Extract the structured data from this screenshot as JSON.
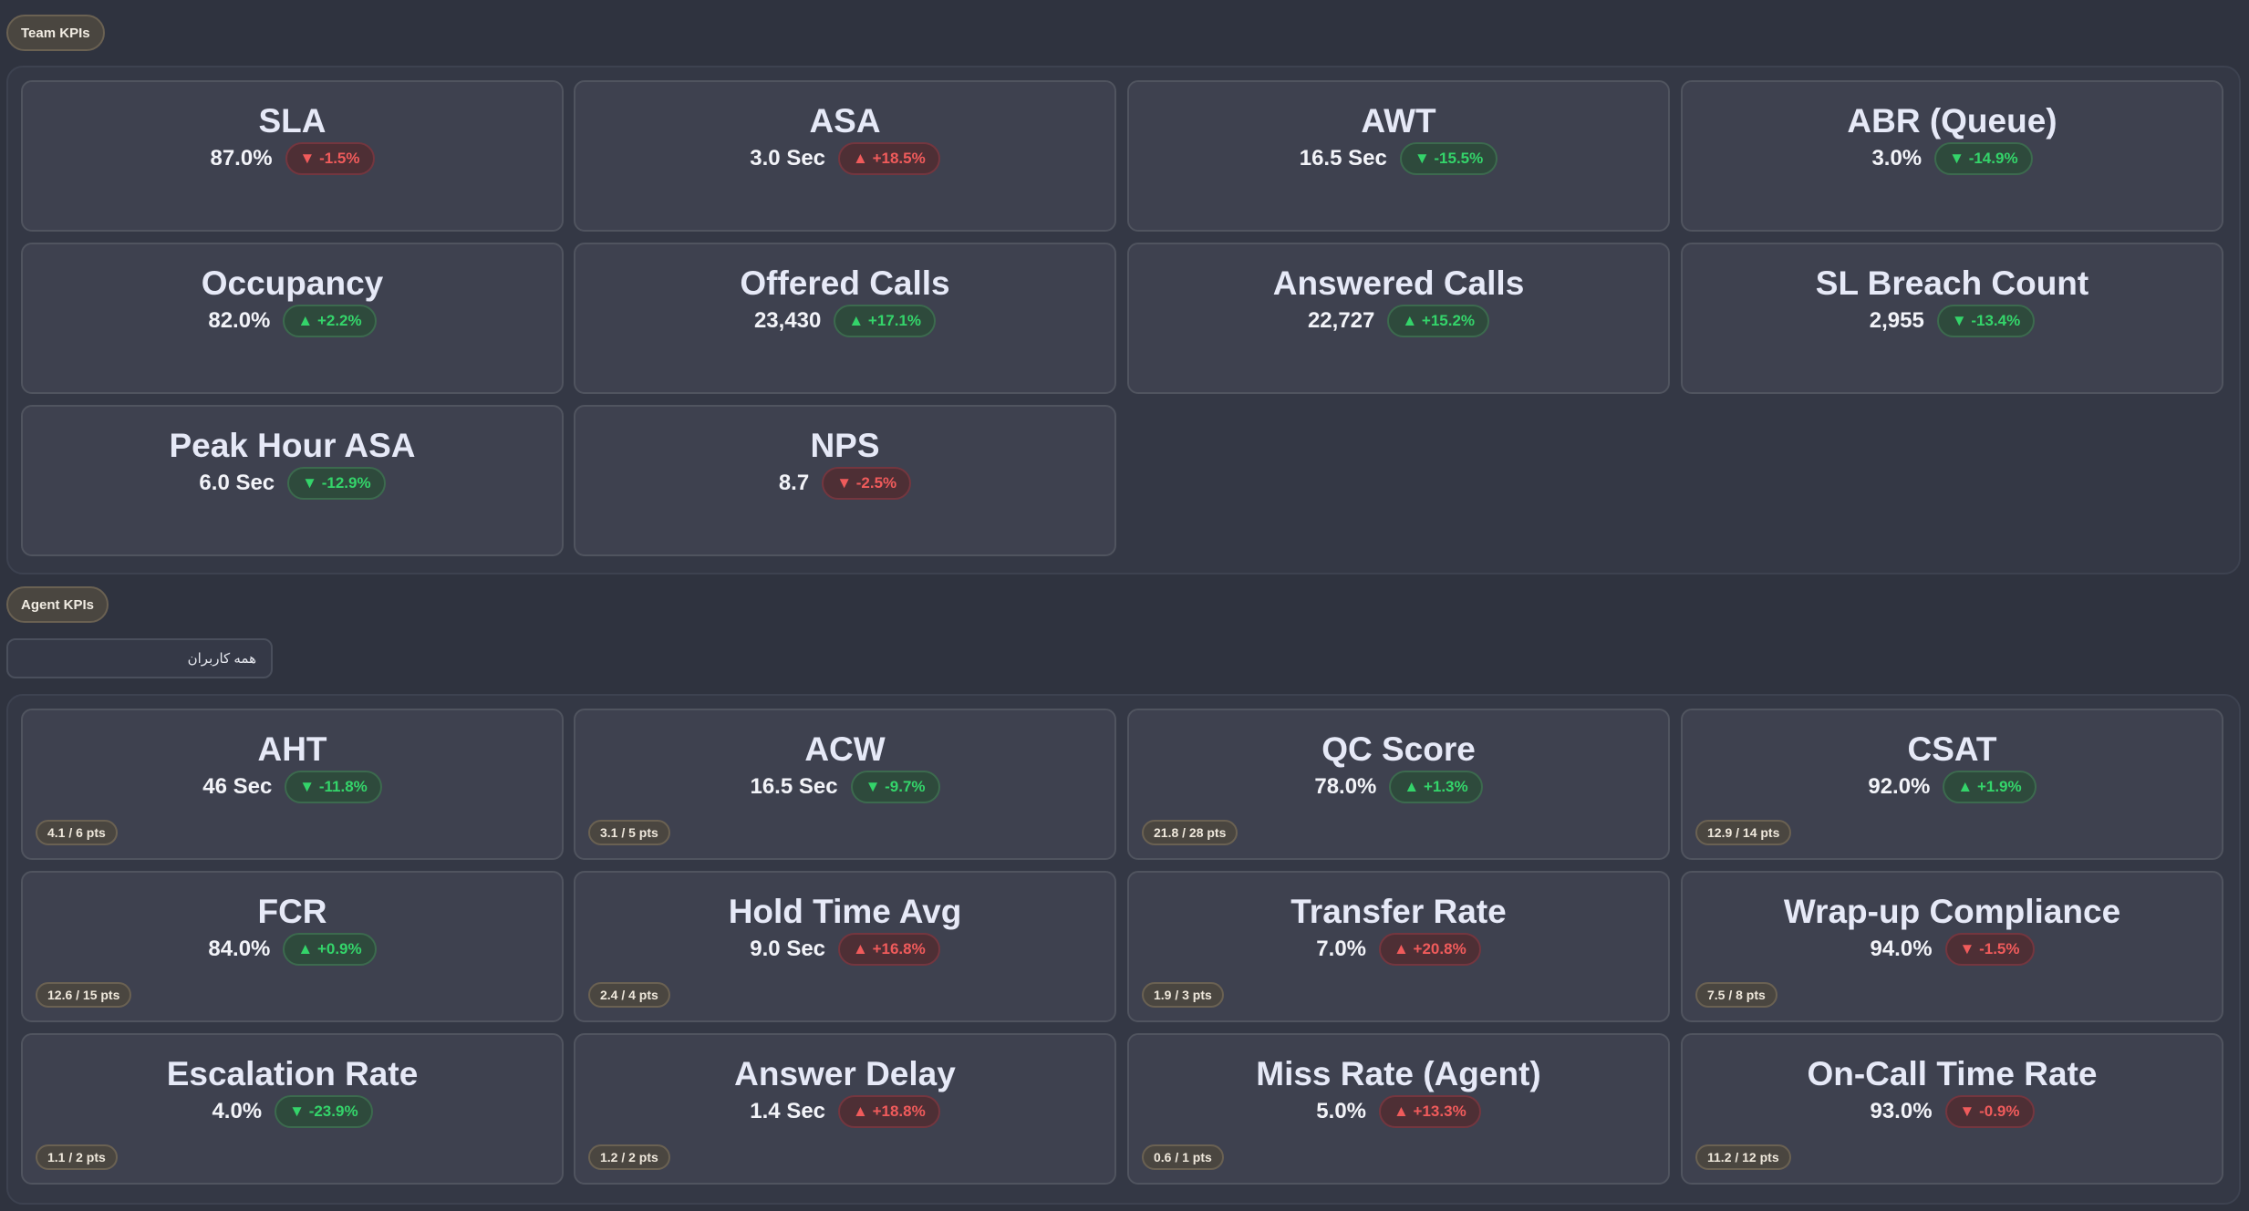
{
  "team_section": {
    "tag": "Team KPIs",
    "cards": [
      {
        "title": "SLA",
        "value": "87.0%",
        "delta": "▼ -1.5%",
        "trend": "neg"
      },
      {
        "title": "ASA",
        "value": "3.0 Sec",
        "delta": "▲ +18.5%",
        "trend": "neg"
      },
      {
        "title": "AWT",
        "value": "16.5 Sec",
        "delta": "▼ -15.5%",
        "trend": "pos"
      },
      {
        "title": "ABR (Queue)",
        "value": "3.0%",
        "delta": "▼ -14.9%",
        "trend": "pos"
      },
      {
        "title": "Occupancy",
        "value": "82.0%",
        "delta": "▲ +2.2%",
        "trend": "pos"
      },
      {
        "title": "Offered Calls",
        "value": "23,430",
        "delta": "▲ +17.1%",
        "trend": "pos"
      },
      {
        "title": "Answered Calls",
        "value": "22,727",
        "delta": "▲ +15.2%",
        "trend": "pos"
      },
      {
        "title": "SL Breach Count",
        "value": "2,955",
        "delta": "▼ -13.4%",
        "trend": "pos"
      },
      {
        "title": "Peak Hour ASA",
        "value": "6.0 Sec",
        "delta": "▼ -12.9%",
        "trend": "pos"
      },
      {
        "title": "NPS",
        "value": "8.7",
        "delta": "▼ -2.5%",
        "trend": "neg"
      }
    ]
  },
  "agent_section": {
    "tag": "Agent KPIs",
    "user_filter": "همه کاربران",
    "cards": [
      {
        "title": "AHT",
        "value": "46 Sec",
        "delta": "▼ -11.8%",
        "trend": "pos",
        "pts": "4.1 / 6 pts"
      },
      {
        "title": "ACW",
        "value": "16.5 Sec",
        "delta": "▼ -9.7%",
        "trend": "pos",
        "pts": "3.1 / 5 pts"
      },
      {
        "title": "QC Score",
        "value": "78.0%",
        "delta": "▲ +1.3%",
        "trend": "pos",
        "pts": "21.8 / 28 pts"
      },
      {
        "title": "CSAT",
        "value": "92.0%",
        "delta": "▲ +1.9%",
        "trend": "pos",
        "pts": "12.9 / 14 pts"
      },
      {
        "title": "FCR",
        "value": "84.0%",
        "delta": "▲ +0.9%",
        "trend": "pos",
        "pts": "12.6 / 15 pts"
      },
      {
        "title": "Hold Time Avg",
        "value": "9.0 Sec",
        "delta": "▲ +16.8%",
        "trend": "neg",
        "pts": "2.4 / 4 pts"
      },
      {
        "title": "Transfer Rate",
        "value": "7.0%",
        "delta": "▲ +20.8%",
        "trend": "neg",
        "pts": "1.9 / 3 pts"
      },
      {
        "title": "Wrap-up Compliance",
        "value": "94.0%",
        "delta": "▼ -1.5%",
        "trend": "neg",
        "pts": "7.5 / 8 pts"
      },
      {
        "title": "Escalation Rate",
        "value": "4.0%",
        "delta": "▼ -23.9%",
        "trend": "pos",
        "pts": "1.1 / 2 pts"
      },
      {
        "title": "Answer Delay",
        "value": "1.4 Sec",
        "delta": "▲ +18.8%",
        "trend": "neg",
        "pts": "1.2 / 2 pts"
      },
      {
        "title": "Miss Rate (Agent)",
        "value": "5.0%",
        "delta": "▲ +13.3%",
        "trend": "neg",
        "pts": "0.6 / 1 pts"
      },
      {
        "title": "On-Call Time Rate",
        "value": "93.0%",
        "delta": "▼ -0.9%",
        "trend": "neg",
        "pts": "11.2 / 12 pts"
      }
    ]
  },
  "colors": {
    "positive": "#34d46a",
    "negative": "#f05b5b",
    "background": "#2f333f",
    "card": "#3e414f"
  }
}
